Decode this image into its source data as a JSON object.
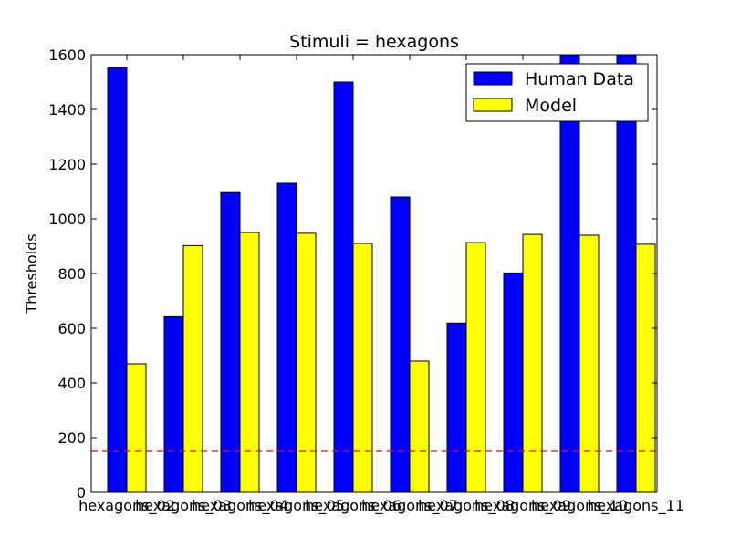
{
  "chart_data": {
    "type": "bar",
    "title": "Stimuli = hexagons",
    "xlabel": "",
    "ylabel": "Thresholds",
    "ylim": [
      0,
      1600
    ],
    "yticks": [
      0,
      200,
      400,
      600,
      800,
      1000,
      1200,
      1400,
      1600
    ],
    "categories": [
      "hexagons_02",
      "hexagons_03",
      "hexagons_04",
      "hexagons_05",
      "hexagons_06",
      "hexagons_07",
      "hexagons_08",
      "hexagons_09",
      "hexagons_10",
      "hexagons_11"
    ],
    "series": [
      {
        "name": "Human Data",
        "color": "#0000ff",
        "values": [
          1553,
          642,
          1096,
          1130,
          1500,
          1080,
          619,
          802,
          1600,
          1600
        ]
      },
      {
        "name": "Model",
        "color": "#ffff00",
        "values": [
          470,
          902,
          950,
          947,
          910,
          480,
          913,
          943,
          940,
          907
        ]
      }
    ],
    "reference_line": {
      "value": 150,
      "color": "#ff0000",
      "style": "dashed"
    },
    "legend_position": "top-right",
    "grid": false
  }
}
